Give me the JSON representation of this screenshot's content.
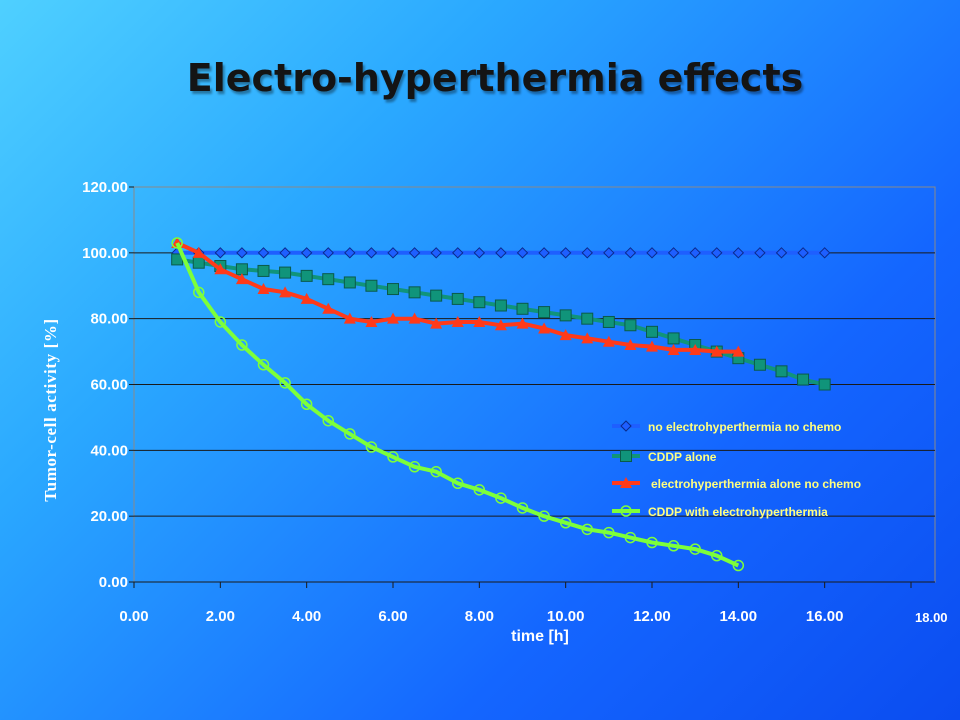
{
  "chart_data": {
    "type": "line",
    "title": "Electro-hyperthermia effects",
    "xlabel": "time [h]",
    "ylabel": "Tumor-cell activity [%]",
    "xlim": [
      0,
      18
    ],
    "ylim": [
      0,
      120
    ],
    "x_ticks": [
      "0.00",
      "2.00",
      "4.00",
      "6.00",
      "8.00",
      "10.00",
      "12.00",
      "14.00",
      "16.00",
      "18.00"
    ],
    "y_ticks": [
      "0.00",
      "20.00",
      "40.00",
      "60.00",
      "80.00",
      "100.00",
      "120.00"
    ],
    "grid": "horizontal",
    "legend_position": "lower-right",
    "series": [
      {
        "name": "no electrohyperthermia no chemo",
        "color": "#1e5fff",
        "marker": "diamond",
        "x": [
          1,
          1.5,
          2,
          2.5,
          3,
          3.5,
          4,
          4.5,
          5,
          5.5,
          6,
          6.5,
          7,
          7.5,
          8,
          8.5,
          9,
          9.5,
          10,
          10.5,
          11,
          11.5,
          12,
          12.5,
          13,
          13.5,
          14,
          14.5,
          15,
          15.5,
          16
        ],
        "y": [
          100,
          100,
          100,
          100,
          100,
          100,
          100,
          100,
          100,
          100,
          100,
          100,
          100,
          100,
          100,
          100,
          100,
          100,
          100,
          100,
          100,
          100,
          100,
          100,
          100,
          100,
          100,
          100,
          100,
          100,
          100
        ]
      },
      {
        "name": "CDDP  alone",
        "color": "#10947a",
        "marker": "square",
        "x": [
          1,
          1.5,
          2,
          2.5,
          3,
          3.5,
          4,
          4.5,
          5,
          5.5,
          6,
          6.5,
          7,
          7.5,
          8,
          8.5,
          9,
          9.5,
          10,
          10.5,
          11,
          11.5,
          12,
          12.5,
          13,
          13.5,
          14,
          14.5,
          15,
          15.5,
          16
        ],
        "y": [
          98,
          97,
          96,
          95,
          94.5,
          94,
          93,
          92,
          91,
          90,
          89,
          88,
          87,
          86,
          85,
          84,
          83,
          82,
          81,
          80,
          79,
          78,
          76,
          74,
          72,
          70,
          68,
          66,
          64,
          61.5,
          60
        ]
      },
      {
        "name": "electrohyperthermia alone no chemo",
        "color": "#ff3a1a",
        "marker": "triangle",
        "x": [
          1,
          1.5,
          2,
          2.5,
          3,
          3.5,
          4,
          4.5,
          5,
          5.5,
          6,
          6.5,
          7,
          7.5,
          8,
          8.5,
          9,
          9.5,
          10,
          10.5,
          11,
          11.5,
          12,
          12.5,
          13,
          13.5,
          14
        ],
        "y": [
          103,
          100,
          95,
          92,
          89,
          88,
          86,
          83,
          80,
          79,
          80,
          80,
          78.5,
          79,
          79,
          78,
          78.5,
          77,
          75,
          74,
          73,
          72,
          71.5,
          70.5,
          70.5,
          70,
          70
        ]
      },
      {
        "name": "CDDP  with electrohyperthermia",
        "color": "#7dff3a",
        "marker": "circle",
        "x": [
          1,
          1.5,
          2,
          2.5,
          3,
          3.5,
          4,
          4.5,
          5,
          5.5,
          6,
          6.5,
          7,
          7.5,
          8,
          8.5,
          9,
          9.5,
          10,
          10.5,
          11,
          11.5,
          12,
          12.5,
          13,
          13.5,
          14
        ],
        "y": [
          103,
          88,
          79,
          72,
          66,
          60.5,
          54,
          49,
          45,
          41,
          38,
          35,
          33.5,
          30,
          28,
          25.5,
          22.5,
          20,
          18,
          16,
          15,
          13.5,
          12,
          11,
          10,
          8,
          5
        ]
      }
    ]
  }
}
